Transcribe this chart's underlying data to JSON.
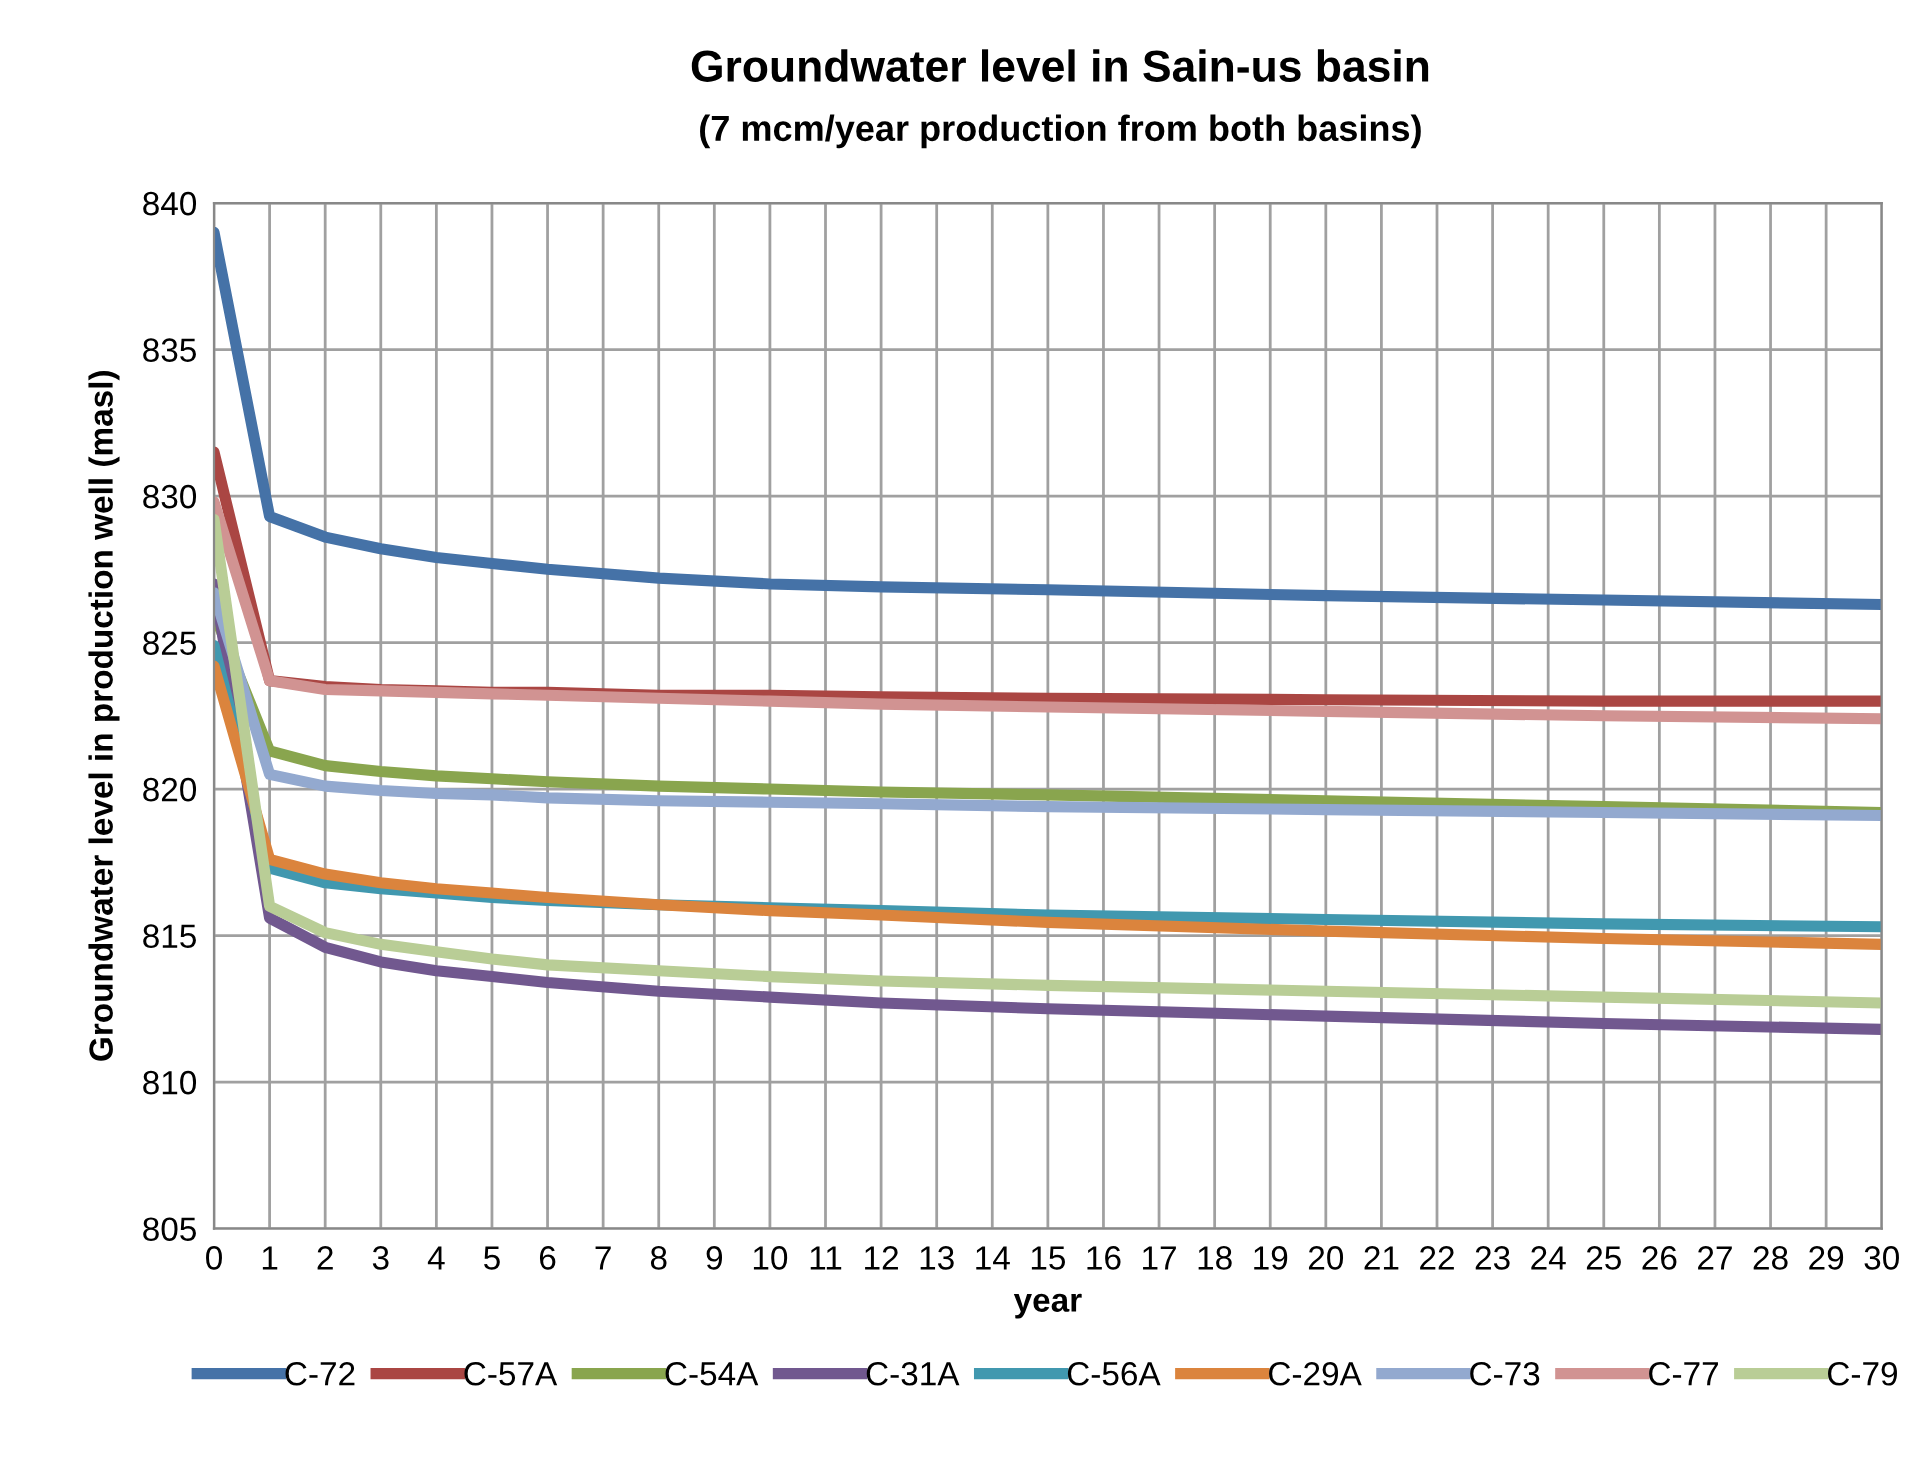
{
  "chart_data": {
    "type": "line",
    "title": "Groundwater level in Sain-us basin",
    "subtitle": "(7 mcm/year production from both basins)",
    "xlabel": "year",
    "ylabel": "Groundwater level in production well (masl)",
    "x": [
      0,
      1,
      2,
      3,
      4,
      5,
      6,
      8,
      10,
      12,
      15,
      20,
      25,
      30
    ],
    "xlim": [
      0,
      30
    ],
    "xticks": [
      0,
      1,
      2,
      3,
      4,
      5,
      6,
      7,
      8,
      9,
      10,
      11,
      12,
      13,
      14,
      15,
      16,
      17,
      18,
      19,
      20,
      21,
      22,
      23,
      24,
      25,
      26,
      27,
      28,
      29,
      30
    ],
    "ylim": [
      805,
      840
    ],
    "yticks": [
      805,
      810,
      815,
      820,
      825,
      830,
      835,
      840
    ],
    "grid": true,
    "legend": "bottom",
    "marker": "none",
    "line_style": "solid",
    "series": [
      {
        "name": "C-72",
        "color": "#4572a7",
        "values": [
          839.0,
          829.3,
          828.6,
          828.2,
          827.9,
          827.7,
          827.5,
          827.2,
          827.0,
          826.9,
          826.8,
          826.6,
          826.45,
          826.3
        ]
      },
      {
        "name": "C-57A",
        "color": "#aa4643",
        "values": [
          831.5,
          823.7,
          823.5,
          823.4,
          823.35,
          823.3,
          823.3,
          823.2,
          823.2,
          823.15,
          823.1,
          823.05,
          823.0,
          823.0
        ]
      },
      {
        "name": "C-54A",
        "color": "#89a54e",
        "values": [
          826.0,
          821.3,
          820.8,
          820.6,
          820.45,
          820.35,
          820.25,
          820.1,
          820.0,
          819.9,
          819.8,
          819.6,
          819.4,
          819.2
        ]
      },
      {
        "name": "C-31A",
        "color": "#71588f",
        "values": [
          827.0,
          815.6,
          814.6,
          814.1,
          813.8,
          813.6,
          813.4,
          813.1,
          812.9,
          812.7,
          812.5,
          812.25,
          812.0,
          811.8
        ]
      },
      {
        "name": "C-56A",
        "color": "#4198af",
        "values": [
          824.9,
          817.3,
          816.8,
          816.6,
          816.45,
          816.3,
          816.2,
          816.05,
          815.95,
          815.85,
          815.7,
          815.55,
          815.4,
          815.3
        ]
      },
      {
        "name": "C-29A",
        "color": "#db843d",
        "values": [
          824.2,
          817.6,
          817.1,
          816.8,
          816.6,
          816.45,
          816.3,
          816.05,
          815.85,
          815.7,
          815.45,
          815.15,
          814.9,
          814.7
        ]
      },
      {
        "name": "C-73",
        "color": "#93a9cf",
        "values": [
          826.7,
          820.5,
          820.1,
          819.95,
          819.85,
          819.8,
          819.7,
          819.6,
          819.55,
          819.5,
          819.4,
          819.3,
          819.2,
          819.1
        ]
      },
      {
        "name": "C-77",
        "color": "#d19392",
        "values": [
          829.8,
          823.7,
          823.4,
          823.35,
          823.3,
          823.25,
          823.2,
          823.1,
          823.0,
          822.9,
          822.8,
          822.65,
          822.5,
          822.4
        ]
      },
      {
        "name": "C-79",
        "color": "#b9cd96",
        "values": [
          829.2,
          816.0,
          815.1,
          814.7,
          814.45,
          814.2,
          814.0,
          813.8,
          813.6,
          813.45,
          813.3,
          813.1,
          812.9,
          812.7
        ]
      }
    ]
  }
}
